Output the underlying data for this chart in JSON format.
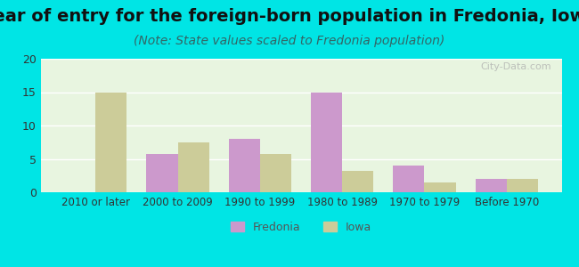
{
  "title": "Year of entry for the foreign-born population in Fredonia, Iowa",
  "subtitle": "(Note: State values scaled to Fredonia population)",
  "categories": [
    "2010 or later",
    "2000 to 2009",
    "1990 to 1999",
    "1980 to 1989",
    "1970 to 1979",
    "Before 1970"
  ],
  "fredonia_values": [
    0,
    5.7,
    8.0,
    15.0,
    4.0,
    2.0
  ],
  "iowa_values": [
    15.0,
    7.5,
    5.7,
    3.2,
    1.5,
    2.0
  ],
  "fredonia_color": "#cc99cc",
  "iowa_color": "#cccc99",
  "background_outer": "#00e5e5",
  "background_inner": "#e8f5e0",
  "ylim": [
    0,
    20
  ],
  "yticks": [
    0,
    5,
    10,
    15,
    20
  ],
  "legend_labels": [
    "Fredonia",
    "Iowa"
  ],
  "bar_width": 0.38,
  "title_fontsize": 14,
  "subtitle_fontsize": 10
}
